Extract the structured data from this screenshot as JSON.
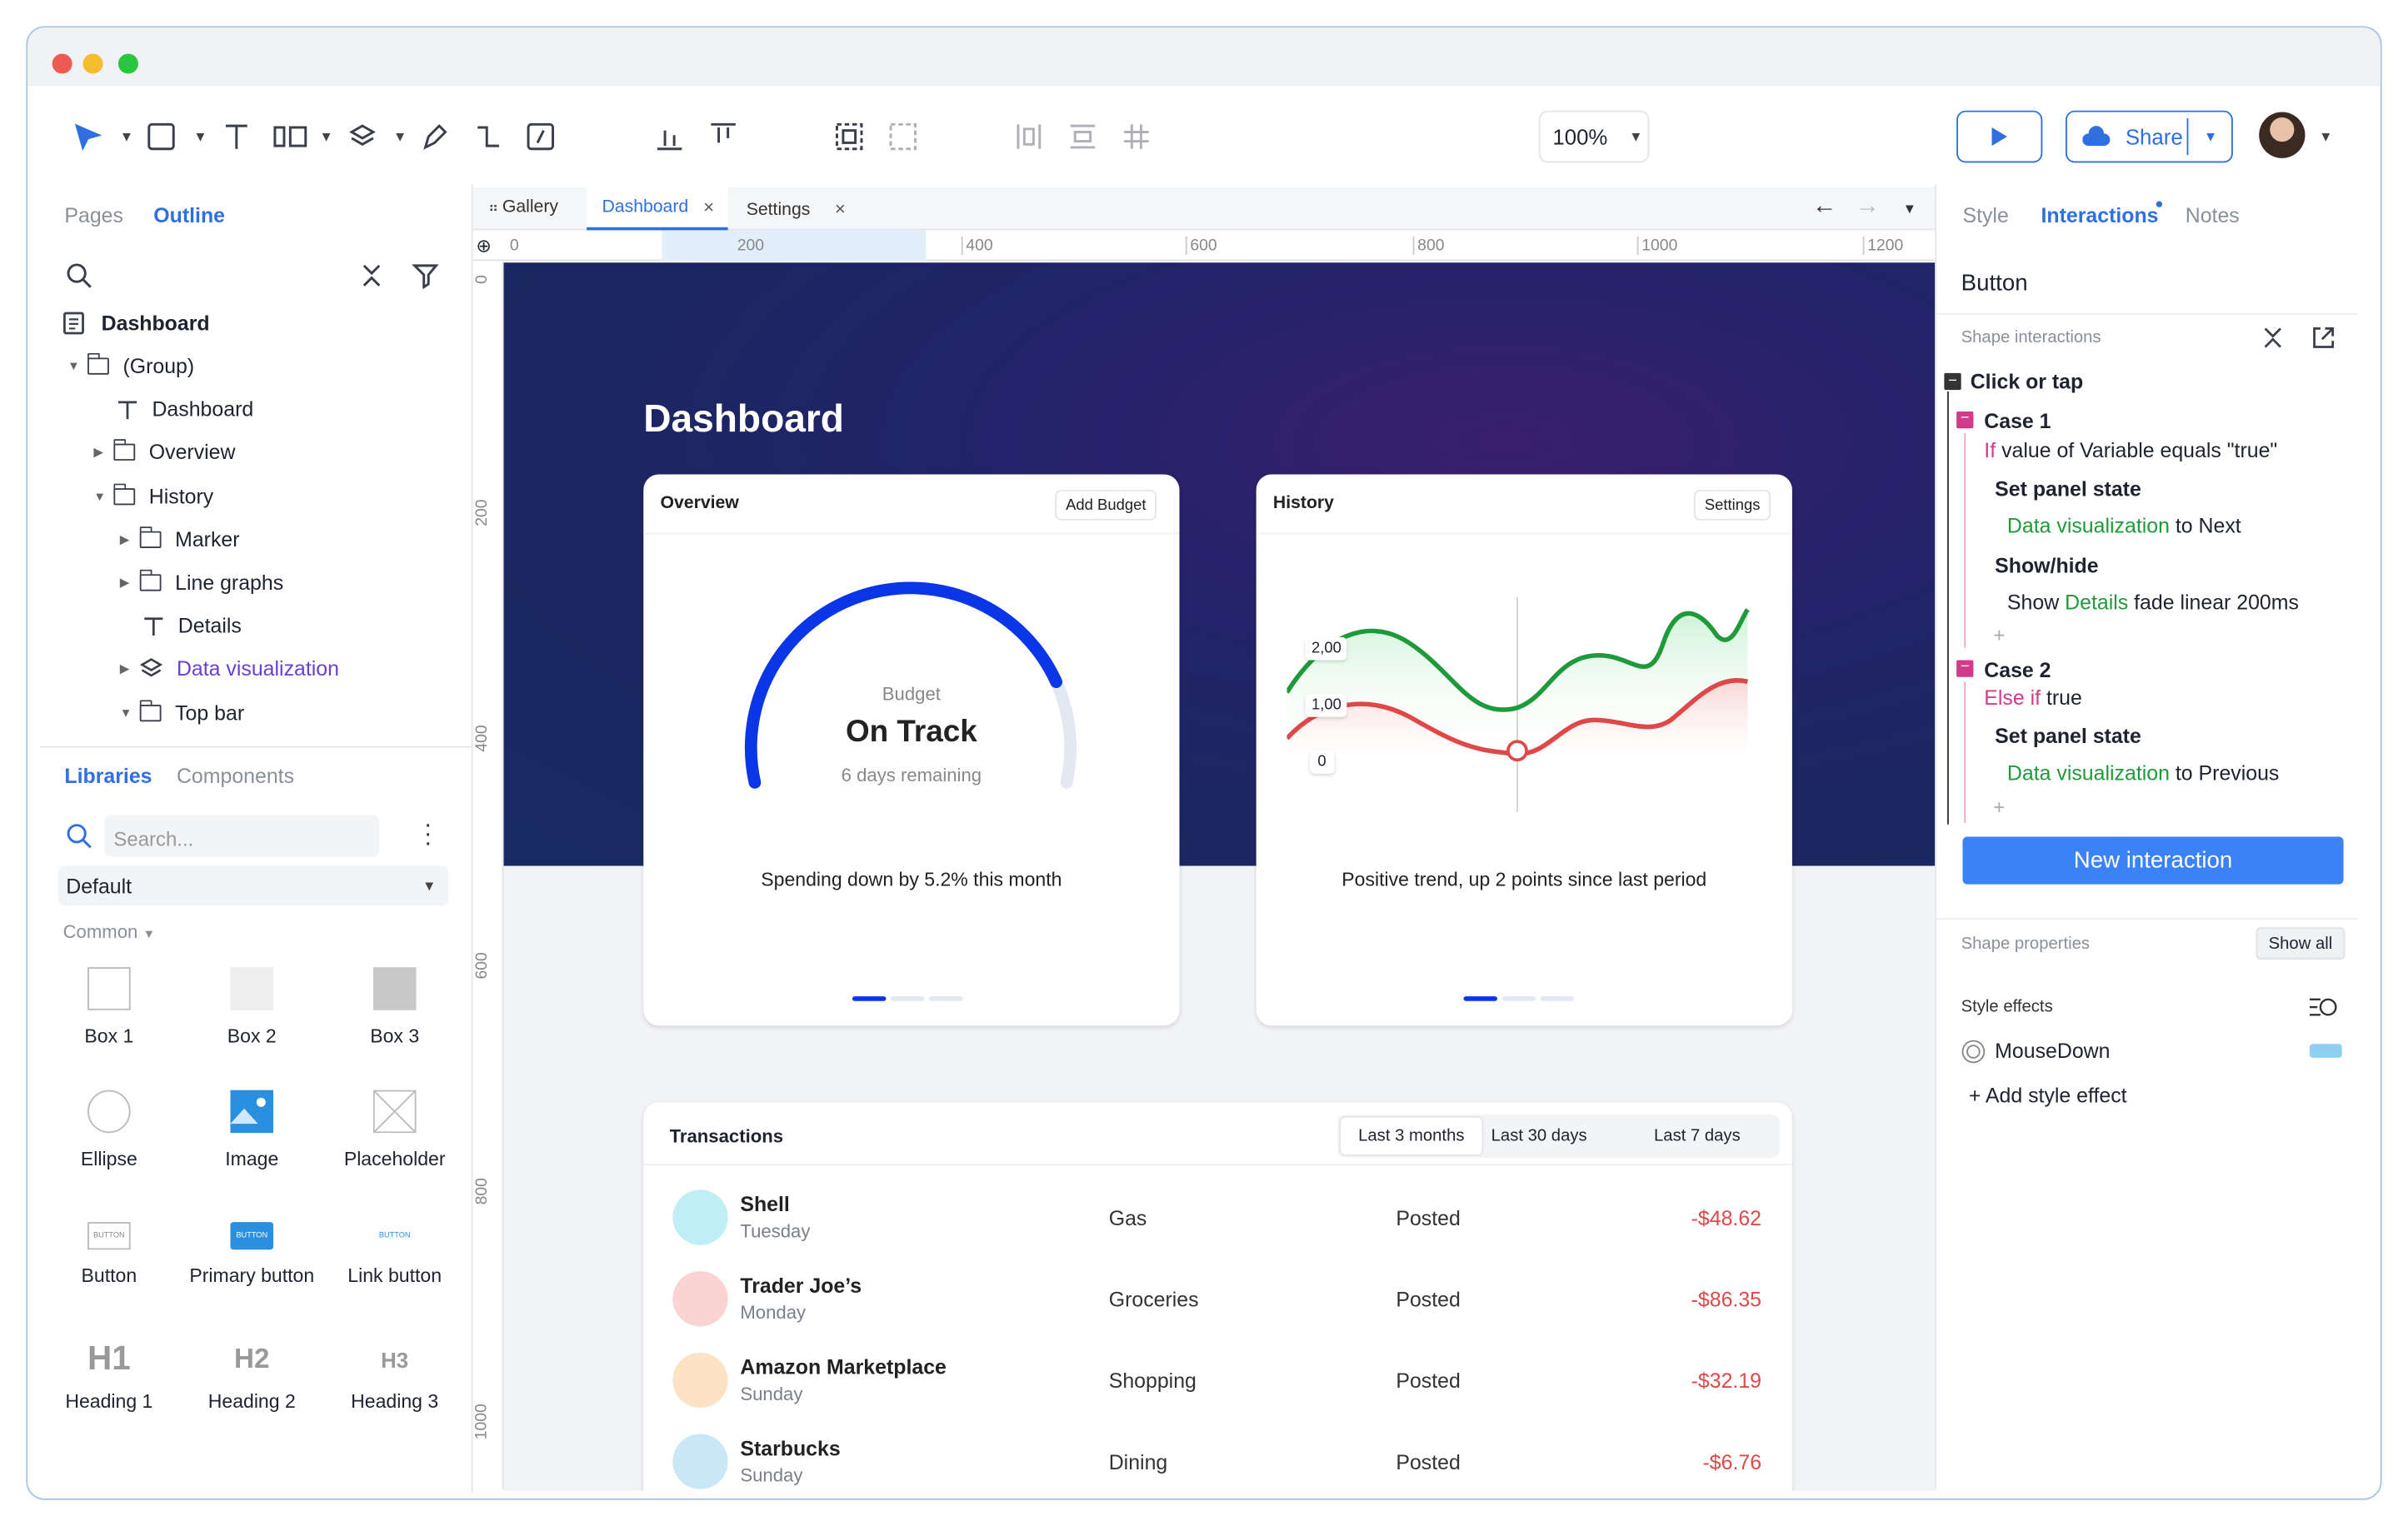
{
  "toolbar": {
    "zoom": "100%",
    "share_label": "Share"
  },
  "left_panel": {
    "tabs": [
      "Pages",
      "Outline"
    ],
    "tree": [
      {
        "label": "Dashboard"
      },
      {
        "label": "(Group)"
      },
      {
        "label": "Dashboard"
      },
      {
        "label": "Overview"
      },
      {
        "label": "History"
      },
      {
        "label": "Marker"
      },
      {
        "label": "Line graphs"
      },
      {
        "label": "Details"
      },
      {
        "label": "Data visualization"
      },
      {
        "label": "Top bar"
      }
    ],
    "lib_tabs": [
      "Libraries",
      "Components"
    ],
    "search_placeholder": "Search...",
    "library_select": "Default",
    "category": "Common",
    "items": [
      "Box 1",
      "Box 2",
      "Box 3",
      "Ellipse",
      "Image",
      "Placeholder",
      "Button",
      "Primary button",
      "Link button",
      "Heading 1",
      "Heading 2",
      "Heading 3"
    ],
    "button_glyph": "BUTTON",
    "heading_glyphs": [
      "H1",
      "H2",
      "H3"
    ]
  },
  "canvas": {
    "tabs": [
      "Gallery",
      "Dashboard",
      "Settings"
    ],
    "ruler_h": [
      "0",
      "200",
      "400",
      "600",
      "800",
      "1000",
      "1200"
    ],
    "ruler_v": [
      "0",
      "200",
      "400",
      "600",
      "800",
      "1000"
    ],
    "page_title": "Dashboard",
    "overview": {
      "title": "Overview",
      "button": "Add Budget",
      "gauge_label": "Budget",
      "gauge_value": "On Track",
      "gauge_sub": "6 days remaining",
      "gauge_progress": 0.82,
      "caption": "Spending down by 5.2% this month"
    },
    "history": {
      "title": "History",
      "button": "Settings",
      "y_labels": [
        "2,00",
        "1,00",
        "0"
      ],
      "caption": "Positive trend, up 2 points since last period"
    },
    "transactions": {
      "title": "Transactions",
      "filters": [
        "Last 3 months",
        "Last 30 days",
        "Last 7 days"
      ],
      "rows": [
        {
          "name": "Shell",
          "day": "Tuesday",
          "category": "Gas",
          "status": "Posted",
          "amount": "-$48.62",
          "color": "#bfeff5"
        },
        {
          "name": "Trader Joe’s",
          "day": "Monday",
          "category": "Groceries",
          "status": "Posted",
          "amount": "-$86.35",
          "color": "#fbd3d3"
        },
        {
          "name": "Amazon Marketplace",
          "day": "Sunday",
          "category": "Shopping",
          "status": "Posted",
          "amount": "-$32.19",
          "color": "#fde3c4"
        },
        {
          "name": "Starbucks",
          "day": "Sunday",
          "category": "Dining",
          "status": "Posted",
          "amount": "-$6.76",
          "color": "#c9e7f7"
        }
      ]
    }
  },
  "right_panel": {
    "tabs": [
      "Style",
      "Interactions",
      "Notes"
    ],
    "selection": "Button",
    "shape_interactions": "Shape interactions",
    "event": "Click or tap",
    "case1": {
      "title": "Case 1",
      "cond_kw": "If",
      "cond": "value of Variable equals \"true\"",
      "a1": "Set panel state",
      "a1_target": "Data visualization",
      "a1_rest": "to Next",
      "a2": "Show/hide",
      "a2_pre": "Show",
      "a2_target": "Details",
      "a2_rest": "fade linear 200ms"
    },
    "case2": {
      "title": "Case 2",
      "cond_kw": "Else if",
      "cond": "true",
      "a1": "Set panel state",
      "a1_target": "Data visualization",
      "a1_rest": "to Previous"
    },
    "new_interaction": "New interaction",
    "shape_properties": "Shape properties",
    "show_all": "Show all",
    "style_effects": "Style effects",
    "mousedown": "MouseDown",
    "add_style_effect": "Add style effect",
    "accent": "#3b82f6"
  }
}
